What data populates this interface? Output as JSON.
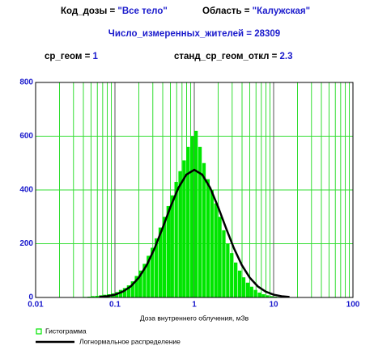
{
  "header": {
    "code_label": "Код_дозы = ",
    "code_value": "\"Все тело\"",
    "region_label": "Область = ",
    "region_value": "\"Калужская\"",
    "count_text": "Число_измеренных_жителей = 28309",
    "gm_label": "ср_геом = ",
    "gm_value": "1",
    "gsd_label": "станд_ср_геом_откл = ",
    "gsd_value": "2.3"
  },
  "chart_data": {
    "type": "histogram",
    "xlabel": "Доза внутреннего облучения, мЗв",
    "xscale": "log",
    "xlim": [
      0.01,
      100
    ],
    "xticks": [
      0.01,
      0.1,
      1,
      10,
      100
    ],
    "ylim": [
      0,
      800
    ],
    "yticks": [
      0,
      200,
      400,
      600,
      800
    ],
    "grid": true,
    "legend": "bottom-left",
    "bins": [
      0.0398,
      0.0447,
      0.0501,
      0.0562,
      0.0631,
      0.0708,
      0.0794,
      0.0891,
      0.1,
      0.1122,
      0.1259,
      0.1413,
      0.1585,
      0.1778,
      0.1995,
      0.2239,
      0.2512,
      0.2818,
      0.3162,
      0.3548,
      0.3981,
      0.4467,
      0.5012,
      0.5623,
      0.631,
      0.7079,
      0.7943,
      0.8913,
      1,
      1.122,
      1.259,
      1.413,
      1.585,
      1.778,
      1.995,
      2.239,
      2.512,
      2.818,
      3.162,
      3.548,
      3.981,
      4.467,
      5.012,
      5.623,
      6.31,
      7.079,
      7.943,
      8.913,
      10,
      11.22,
      12.59
    ],
    "series": [
      {
        "name": "Гистограмма",
        "color": "#00e600",
        "values": [
          2,
          3,
          5,
          6,
          8,
          10,
          12,
          15,
          20,
          28,
          35,
          45,
          60,
          80,
          100,
          125,
          155,
          185,
          220,
          260,
          300,
          340,
          380,
          430,
          470,
          510,
          560,
          600,
          620,
          560,
          500,
          440,
          400,
          350,
          300,
          250,
          200,
          165,
          130,
          100,
          75,
          55,
          40,
          28,
          18,
          12,
          8,
          5,
          3,
          2
        ]
      },
      {
        "name": "Логнормальное распределение",
        "color": "#000000",
        "type": "line",
        "x": [
          0.0631,
          0.0794,
          0.1,
          0.1259,
          0.1585,
          0.1995,
          0.2512,
          0.3162,
          0.3981,
          0.5012,
          0.631,
          0.7943,
          1,
          1.259,
          1.585,
          1.995,
          2.512,
          3.162,
          3.981,
          5.012,
          6.31,
          7.943,
          10,
          12.59,
          15.85
        ],
        "values": [
          1.9,
          4.7,
          10.4,
          21.6,
          41.4,
          73.2,
          120,
          183,
          258,
          337,
          408,
          457,
          475,
          457,
          408,
          337,
          258,
          183,
          120,
          73.2,
          41.4,
          21.6,
          10.4,
          4.7,
          1.9
        ]
      }
    ]
  }
}
